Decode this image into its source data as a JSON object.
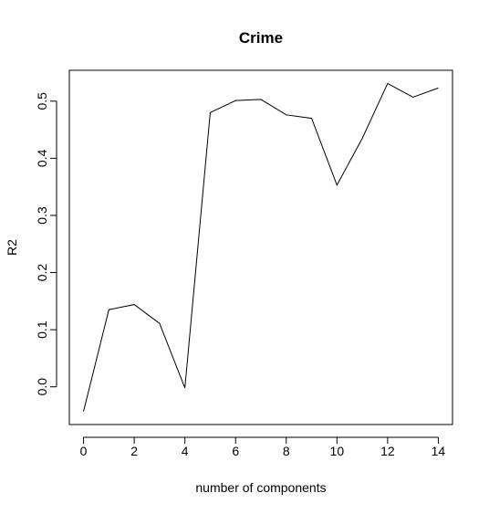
{
  "chart_data": {
    "type": "line",
    "title": "Crime",
    "xlabel": "number of components",
    "ylabel": "R2",
    "x": [
      0,
      1,
      2,
      3,
      4,
      5,
      6,
      7,
      8,
      9,
      10,
      11,
      12,
      13,
      14
    ],
    "series": [
      {
        "values": [
          -0.043,
          0.135,
          0.144,
          0.111,
          -0.002,
          0.48,
          0.501,
          0.503,
          0.476,
          0.47,
          0.353,
          0.435,
          0.531,
          0.507,
          0.523
        ]
      }
    ],
    "xticks": [
      0,
      2,
      4,
      6,
      8,
      10,
      12,
      14
    ],
    "xtick_labels": [
      "0",
      "2",
      "4",
      "6",
      "8",
      "10",
      "12",
      "14"
    ],
    "yticks": [
      0.0,
      0.1,
      0.2,
      0.3,
      0.4,
      0.5
    ],
    "ytick_labels": [
      "0.0",
      "0.1",
      "0.2",
      "0.3",
      "0.4",
      "0.5"
    ],
    "xlim": [
      -0.56,
      14.56
    ],
    "ylim": [
      -0.066,
      0.554
    ],
    "grid": false,
    "legend": "none",
    "line_color": "#000000"
  }
}
